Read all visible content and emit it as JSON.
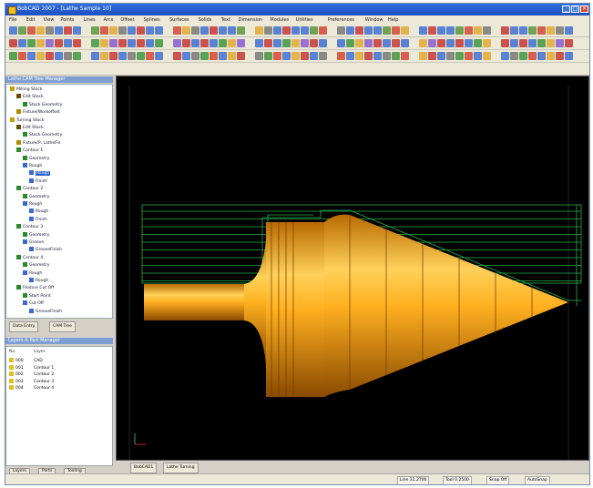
{
  "window": {
    "title": "BobCAD 2007 - [Lathe Sample 10]",
    "controls": [
      "_",
      "□",
      "×"
    ]
  },
  "menubar": [
    "File",
    "Edit",
    "View",
    "Points",
    "Lines",
    "Arcs",
    "Offset",
    "Splines",
    "Surfaces",
    "Solids",
    "Text",
    "Dimension",
    "Modules",
    "Utilities",
    "Preferences",
    "Window",
    "Help"
  ],
  "cam_tree": {
    "header": "Lathe CAM Tree Manager",
    "rows": [
      {
        "label": "Milling Stock",
        "indent": 0,
        "icon": "stock-icon",
        "color": "#c8a000"
      },
      {
        "label": "Edit Stock",
        "indent": 1,
        "icon": "edit-icon",
        "color": "#6a4a00"
      },
      {
        "label": "Stock Geometry",
        "indent": 2,
        "icon": "geometry-icon",
        "color": "#2a8a2a"
      },
      {
        "label": "Fixture/Workoffset",
        "indent": 1,
        "icon": "fixture-icon",
        "color": "#b08a00"
      },
      {
        "label": "Turning Stock",
        "indent": 0,
        "icon": "stock-icon",
        "color": "#c8a000"
      },
      {
        "label": "Edit Stock",
        "indent": 1,
        "icon": "edit-icon",
        "color": "#6a4a00"
      },
      {
        "label": "Stock Geometry",
        "indent": 2,
        "icon": "geometry-icon",
        "color": "#2a8a2a"
      },
      {
        "label": "Fixture/P: LatheFin",
        "indent": 1,
        "icon": "fixture-icon",
        "color": "#b08a00"
      },
      {
        "label": "Contour 1",
        "indent": 1,
        "icon": "feature-icon",
        "color": "#2a8a2a"
      },
      {
        "label": "Geometry",
        "indent": 2,
        "icon": "geometry-icon",
        "color": "#2a8a2a"
      },
      {
        "label": "Rough",
        "indent": 2,
        "icon": "operation-icon",
        "color": "#3a6ad0"
      },
      {
        "label": "Rough",
        "indent": 3,
        "icon": "toolpath-icon",
        "color": "#3a6ad0",
        "selected": true
      },
      {
        "label": "Finish",
        "indent": 3,
        "icon": "toolpath-icon",
        "color": "#3a6ad0"
      },
      {
        "label": "Contour 2",
        "indent": 1,
        "icon": "feature-icon",
        "color": "#2a8a2a"
      },
      {
        "label": "Geometry",
        "indent": 2,
        "icon": "geometry-icon",
        "color": "#2a8a2a"
      },
      {
        "label": "Rough",
        "indent": 2,
        "icon": "operation-icon",
        "color": "#3a6ad0"
      },
      {
        "label": "Rough",
        "indent": 3,
        "icon": "toolpath-icon",
        "color": "#3a6ad0"
      },
      {
        "label": "Finish",
        "indent": 3,
        "icon": "toolpath-icon",
        "color": "#3a6ad0"
      },
      {
        "label": "Contour 3",
        "indent": 1,
        "icon": "feature-icon",
        "color": "#2a8a2a"
      },
      {
        "label": "Geometry",
        "indent": 2,
        "icon": "geometry-icon",
        "color": "#2a8a2a"
      },
      {
        "label": "Groove",
        "indent": 2,
        "icon": "operation-icon",
        "color": "#3a6ad0"
      },
      {
        "label": "GrooveFinish",
        "indent": 3,
        "icon": "toolpath-icon",
        "color": "#3a6ad0"
      },
      {
        "label": "Contour 4",
        "indent": 1,
        "icon": "feature-icon",
        "color": "#2a8a2a"
      },
      {
        "label": "Geometry",
        "indent": 2,
        "icon": "geometry-icon",
        "color": "#2a8a2a"
      },
      {
        "label": "Rough",
        "indent": 2,
        "icon": "operation-icon",
        "color": "#3a6ad0"
      },
      {
        "label": "Rough",
        "indent": 3,
        "icon": "toolpath-icon",
        "color": "#3a6ad0"
      },
      {
        "label": "Feature Cut Off",
        "indent": 1,
        "icon": "feature-icon",
        "color": "#2a8a2a"
      },
      {
        "label": "Start Point",
        "indent": 2,
        "icon": "point-icon",
        "color": "#2a8a2a"
      },
      {
        "label": "Cut Off",
        "indent": 2,
        "icon": "operation-icon",
        "color": "#3a6ad0"
      },
      {
        "label": "GrooveFinish",
        "indent": 3,
        "icon": "toolpath-icon",
        "color": "#3a6ad0"
      }
    ],
    "tabs": [
      "Data Entry",
      "CAM Tree"
    ]
  },
  "layers": {
    "header": "Layers & Part Manager",
    "columns": [
      "No.",
      "Layer"
    ],
    "rows": [
      {
        "no": "000",
        "name": "CAD"
      },
      {
        "no": "001",
        "name": "Contour 1"
      },
      {
        "no": "002",
        "name": "Contour 2"
      },
      {
        "no": "003",
        "name": "Contour 3"
      },
      {
        "no": "004",
        "name": "Contour 4"
      }
    ],
    "tabs": [
      "Layers",
      "Parts",
      "Tooling"
    ]
  },
  "viewport": {
    "background": "#000000",
    "part_color": "#f2a21a",
    "toolpath_color": "#22b04a",
    "tabs": [
      "BobCAD1",
      "Lathe Turning"
    ]
  },
  "statusbar": [
    "Line 31.2700",
    "Tool 0.2500",
    "Snap Off",
    "AutoSnap"
  ]
}
